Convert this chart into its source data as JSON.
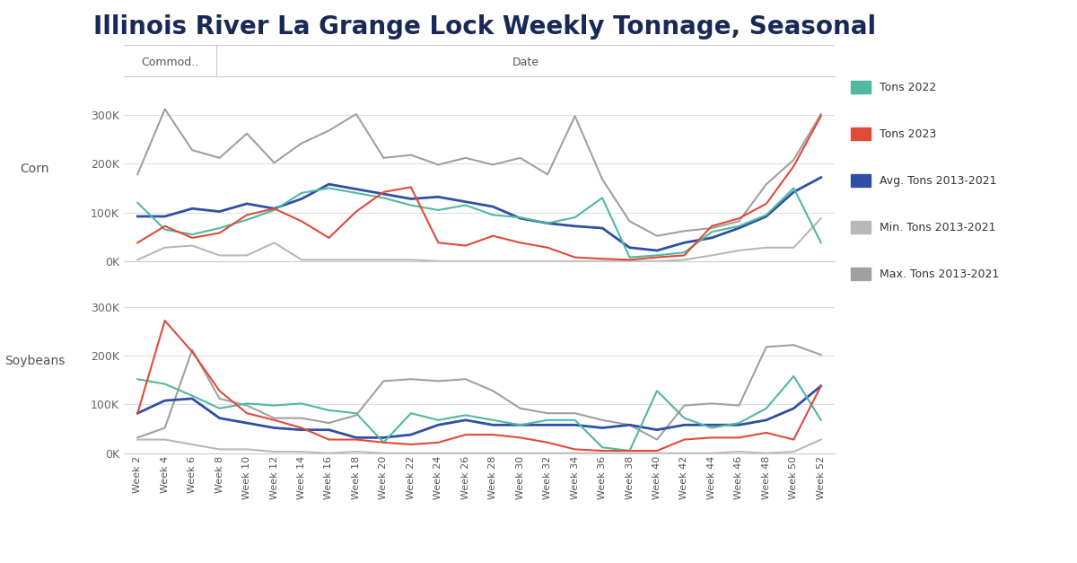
{
  "title": "Illinois River La Grange Lock Weekly Tonnage, Seasonal",
  "weeks": [
    2,
    4,
    6,
    8,
    10,
    12,
    14,
    16,
    18,
    20,
    22,
    24,
    26,
    28,
    30,
    32,
    34,
    36,
    38,
    40,
    42,
    44,
    46,
    48,
    50,
    52
  ],
  "corn": {
    "tons_2022": [
      120000,
      65000,
      55000,
      68000,
      85000,
      105000,
      140000,
      150000,
      140000,
      130000,
      115000,
      105000,
      115000,
      95000,
      90000,
      78000,
      90000,
      130000,
      8000,
      12000,
      18000,
      60000,
      72000,
      95000,
      150000,
      38000
    ],
    "tons_2023": [
      38000,
      72000,
      48000,
      58000,
      95000,
      108000,
      82000,
      48000,
      102000,
      142000,
      152000,
      38000,
      32000,
      52000,
      38000,
      28000,
      8000,
      5000,
      3000,
      8000,
      12000,
      72000,
      88000,
      118000,
      195000,
      298000
    ],
    "avg_2013_2021": [
      92000,
      92000,
      108000,
      102000,
      118000,
      108000,
      128000,
      158000,
      148000,
      138000,
      128000,
      132000,
      122000,
      112000,
      88000,
      78000,
      72000,
      68000,
      28000,
      22000,
      38000,
      48000,
      68000,
      92000,
      142000,
      172000
    ],
    "min_2013_2021": [
      3000,
      28000,
      32000,
      12000,
      12000,
      38000,
      3000,
      3000,
      3000,
      3000,
      3000,
      0,
      0,
      0,
      0,
      0,
      0,
      0,
      0,
      0,
      3000,
      12000,
      22000,
      28000,
      28000,
      88000
    ],
    "max_2013_2021": [
      178000,
      312000,
      228000,
      212000,
      262000,
      202000,
      242000,
      268000,
      302000,
      212000,
      218000,
      198000,
      212000,
      198000,
      212000,
      178000,
      298000,
      168000,
      82000,
      52000,
      62000,
      68000,
      82000,
      158000,
      208000,
      302000
    ]
  },
  "soybeans": {
    "tons_2022": [
      152000,
      142000,
      118000,
      92000,
      102000,
      98000,
      102000,
      88000,
      82000,
      22000,
      82000,
      68000,
      78000,
      68000,
      58000,
      68000,
      68000,
      12000,
      5000,
      128000,
      72000,
      52000,
      62000,
      92000,
      158000,
      68000
    ],
    "tons_2023": [
      82000,
      272000,
      208000,
      128000,
      82000,
      68000,
      52000,
      28000,
      28000,
      22000,
      18000,
      22000,
      38000,
      38000,
      32000,
      22000,
      8000,
      5000,
      5000,
      5000,
      28000,
      32000,
      32000,
      42000,
      28000,
      138000
    ],
    "avg_2013_2021": [
      82000,
      108000,
      112000,
      72000,
      62000,
      52000,
      48000,
      48000,
      32000,
      32000,
      38000,
      58000,
      68000,
      58000,
      58000,
      58000,
      58000,
      52000,
      58000,
      48000,
      58000,
      58000,
      58000,
      68000,
      92000,
      138000
    ],
    "min_2013_2021": [
      28000,
      28000,
      18000,
      8000,
      8000,
      3000,
      3000,
      0,
      3000,
      0,
      0,
      0,
      0,
      0,
      0,
      0,
      0,
      0,
      0,
      0,
      0,
      0,
      3000,
      0,
      3000,
      28000
    ],
    "max_2013_2021": [
      32000,
      52000,
      212000,
      112000,
      98000,
      72000,
      72000,
      62000,
      78000,
      148000,
      152000,
      148000,
      152000,
      128000,
      92000,
      82000,
      82000,
      68000,
      58000,
      28000,
      98000,
      102000,
      98000,
      218000,
      222000,
      202000
    ]
  },
  "colors": {
    "tons_2022": "#50b8a0",
    "tons_2023": "#e04a3a",
    "avg_2013_2021": "#2e4fa3",
    "min_2013_2021": "#b8b8b8",
    "max_2013_2021": "#a0a0a0"
  },
  "legend_labels": [
    "Tons 2022",
    "Tons 2023",
    "Avg. Tons 2013-2021",
    "Min. Tons 2013-2021",
    "Max. Tons 2013-2021"
  ],
  "row_labels": [
    "Corn",
    "Soybeans"
  ],
  "col_label_commodity": "Commod..",
  "col_label_date": "Date",
  "ylim": [
    0,
    380000
  ],
  "yticks": [
    0,
    100000,
    200000,
    300000
  ],
  "ytick_labels": [
    "0K",
    "100K",
    "200K",
    "300K"
  ],
  "title_fontsize": 20,
  "bg_color": "#f5f5f5"
}
